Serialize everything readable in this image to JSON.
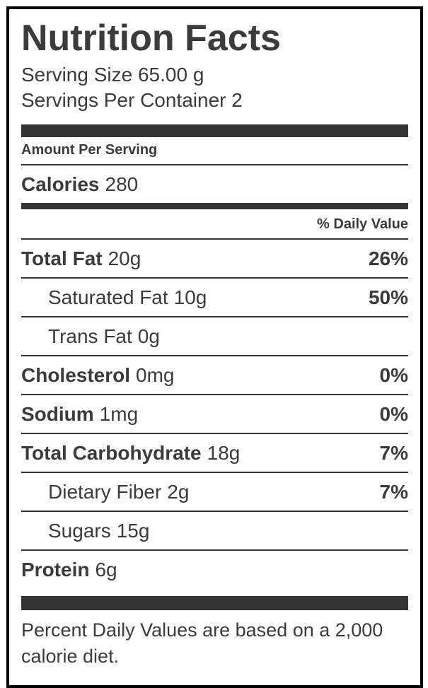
{
  "label": {
    "title": "Nutrition Facts",
    "serving_size": "Serving Size 65.00 g",
    "servings_per_container": "Servings Per Container 2",
    "amount_per_serving": "Amount Per Serving",
    "calories_label": "Calories",
    "calories_value": "280",
    "daily_value_header": "% Daily Value",
    "rows": [
      {
        "name": "Total Fat",
        "amount": "20g",
        "daily_value": "26%",
        "bold": true,
        "indent": false
      },
      {
        "name": "Saturated Fat",
        "amount": "10g",
        "daily_value": "50%",
        "bold": false,
        "indent": true
      },
      {
        "name": "Trans Fat",
        "amount": "0g",
        "daily_value": "",
        "bold": false,
        "indent": true
      },
      {
        "name": "Cholesterol",
        "amount": "0mg",
        "daily_value": "0%",
        "bold": true,
        "indent": false
      },
      {
        "name": "Sodium",
        "amount": "1mg",
        "daily_value": "0%",
        "bold": true,
        "indent": false
      },
      {
        "name": "Total Carbohydrate",
        "amount": "18g",
        "daily_value": "7%",
        "bold": true,
        "indent": false
      },
      {
        "name": "Dietary Fiber",
        "amount": "2g",
        "daily_value": "7%",
        "bold": false,
        "indent": true
      },
      {
        "name": "Sugars",
        "amount": "15g",
        "daily_value": "",
        "bold": false,
        "indent": true
      },
      {
        "name": "Protein",
        "amount": "6g",
        "daily_value": "",
        "bold": true,
        "indent": false
      }
    ],
    "footnote": "Percent Daily Values are based on a 2,000 calorie diet."
  },
  "colors": {
    "text": "#3b3b3b",
    "divider": "#333333",
    "border": "#000000",
    "background": "#ffffff"
  }
}
